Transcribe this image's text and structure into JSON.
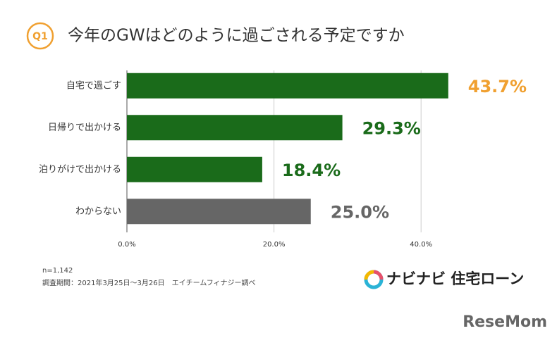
{
  "chart_data": {
    "type": "hbar",
    "badge": "Q1",
    "title": "今年のGWはどのように過ごされる予定ですか",
    "categories": [
      "自宅で過ごす",
      "日帰りで出かける",
      "泊りがけで出かける",
      "わからない"
    ],
    "values": [
      43.7,
      29.3,
      18.4,
      25.0
    ],
    "value_labels": [
      "43.7%",
      "29.3%",
      "18.4%",
      "25.0%"
    ],
    "colors": [
      "#1a6b1a",
      "#1a6b1a",
      "#1a6b1a",
      "#666666"
    ],
    "label_colors": [
      "#f0a030",
      "#1a6b1a",
      "#1a6b1a",
      "#666666"
    ],
    "xlim": [
      0,
      50
    ],
    "xticks": [
      {
        "value": 0,
        "label": "0.0%"
      },
      {
        "value": 20,
        "label": "20.0%"
      },
      {
        "value": 40,
        "label": "40.0%"
      }
    ],
    "grid": true,
    "notes": [
      "n=1,142",
      "調査期間：2021年3月25日～3月26日　エイチームフィナジー調べ"
    ],
    "logo_text": "ナビナビ 住宅ローン",
    "watermark": "ReseMom"
  }
}
